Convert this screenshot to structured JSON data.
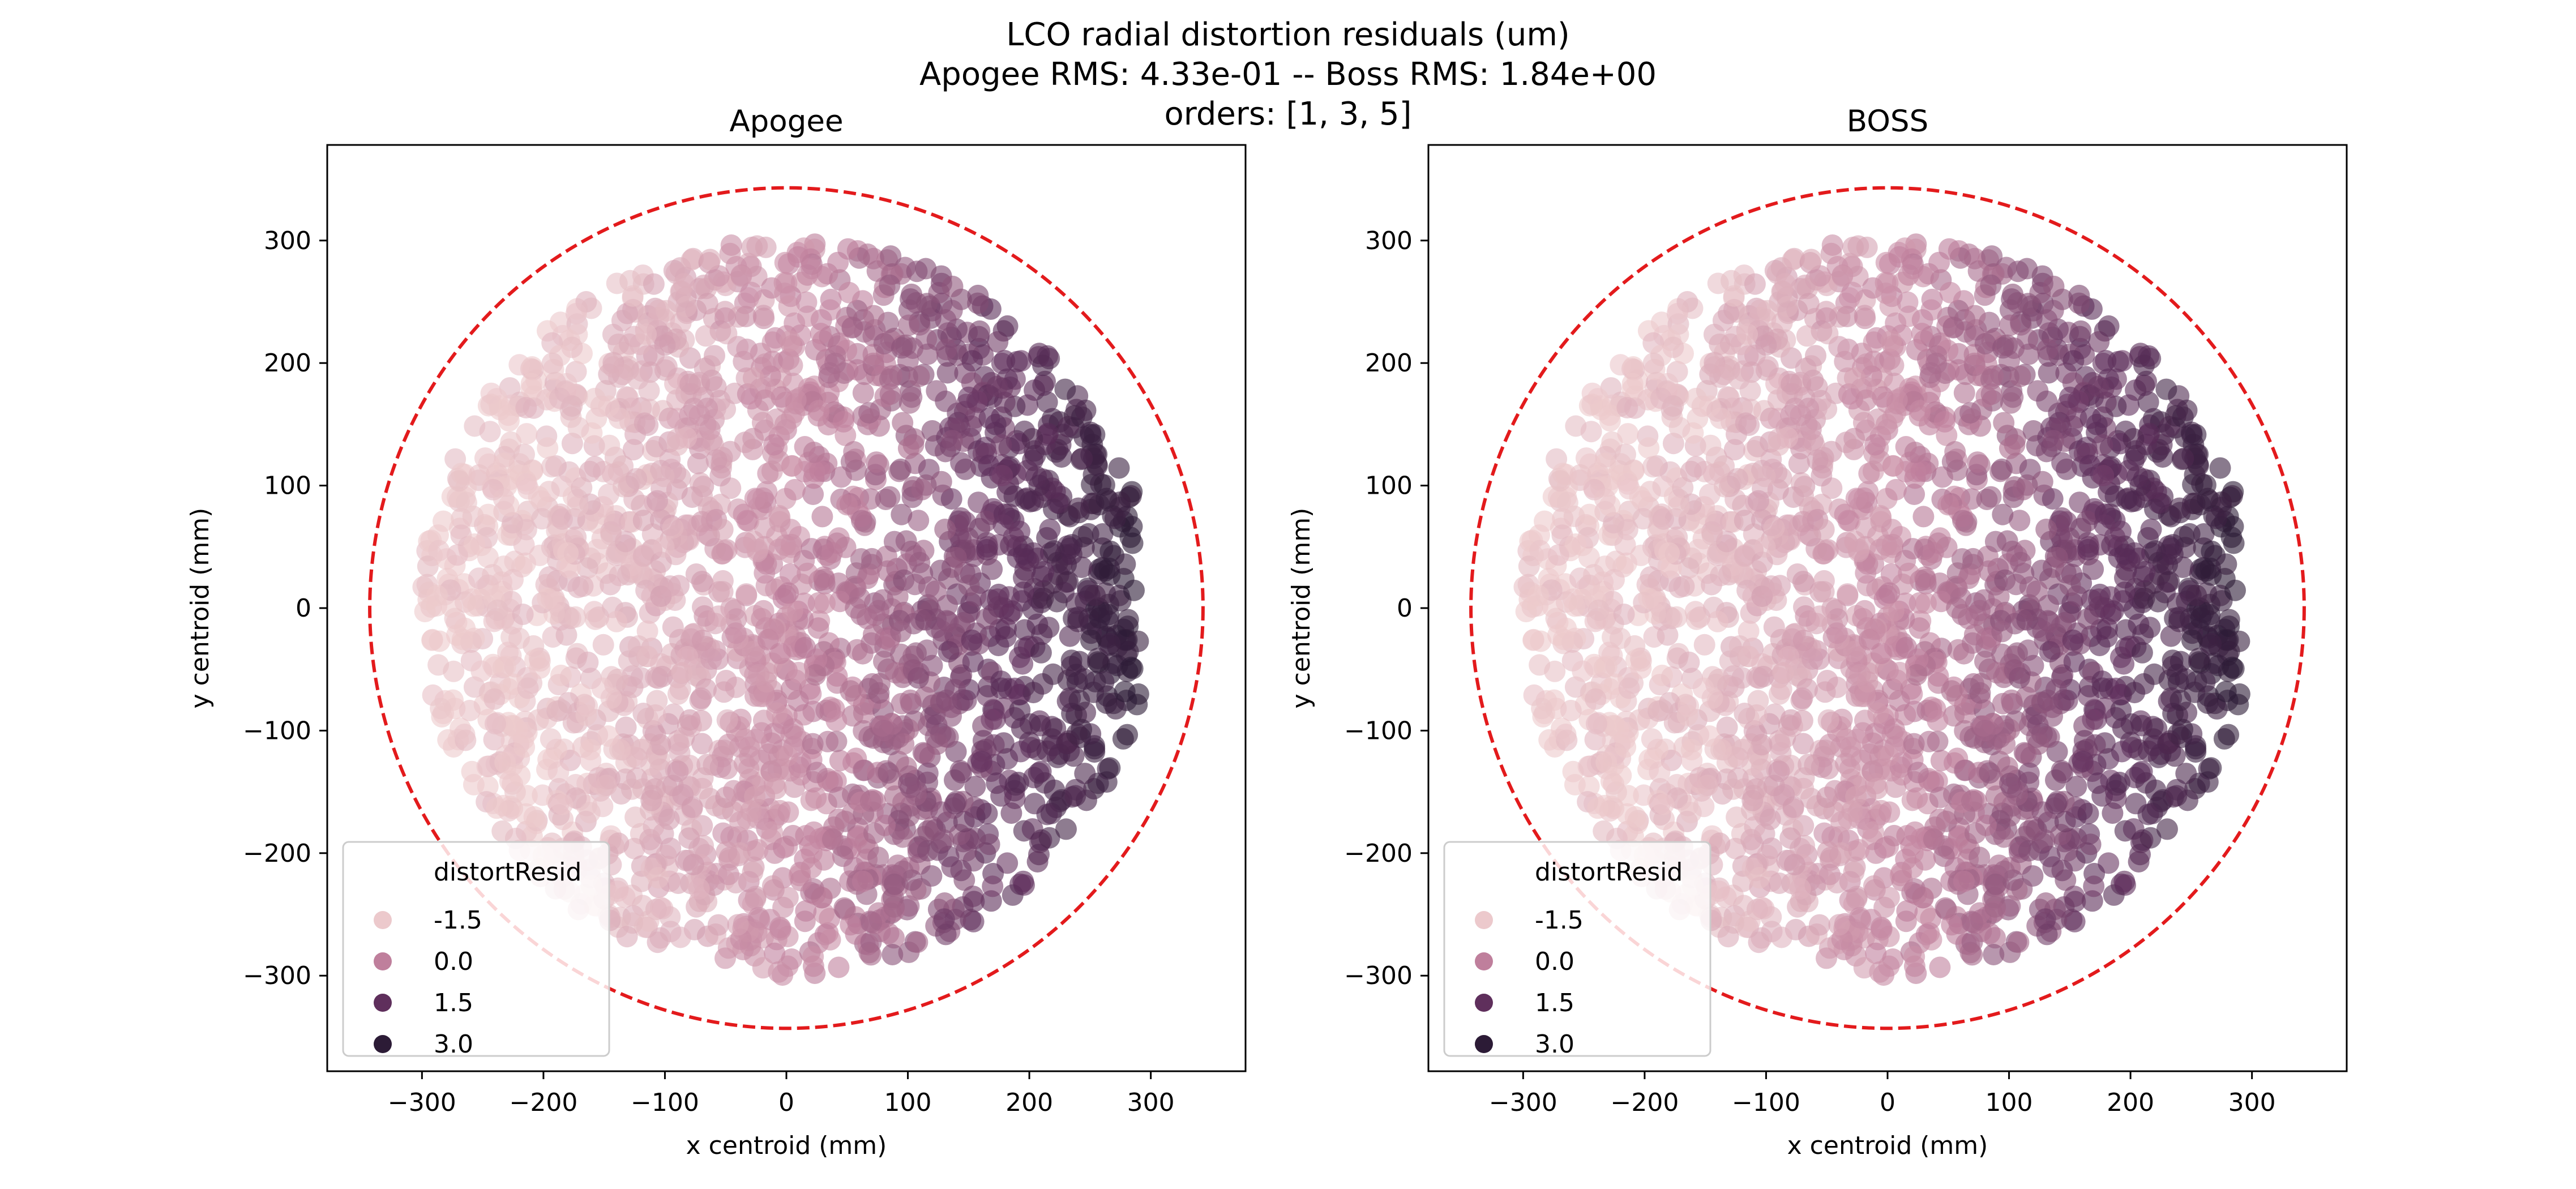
{
  "figure": {
    "title_lines": [
      "LCO radial distortion residuals (um)",
      "Apogee RMS: 4.33e-01 -- Boss RMS: 1.84e+00",
      "orders: [1, 3, 5]"
    ]
  },
  "chart_data": [
    {
      "type": "scatter",
      "title": "Apogee",
      "xlabel": "x centroid (mm)",
      "ylabel": "y centroid (mm)",
      "xlim": [
        -378,
        378
      ],
      "ylim": [
        -378,
        378
      ],
      "xticks": [
        -300,
        -200,
        -100,
        0,
        100,
        200,
        300
      ],
      "yticks": [
        -300,
        -200,
        -100,
        0,
        100,
        200,
        300
      ],
      "xtick_labels": [
        "−300",
        "−200",
        "−100",
        "0",
        "100",
        "200",
        "300"
      ],
      "ytick_labels": [
        "−300",
        "−200",
        "−100",
        "0",
        "100",
        "200",
        "300"
      ],
      "grid": false,
      "hue_variable": "distortResid",
      "color_range": [
        -1.5,
        3.0
      ],
      "field_radius": 300,
      "field_xmax": 290,
      "boundary_circle": {
        "center": [
          0,
          0
        ],
        "radius": 343,
        "color": "#e31a1c",
        "style": "dashed"
      },
      "residual_model": {
        "gradient_axis": "x",
        "value_at_xmin": -1.5,
        "value_at_xmax": 3.0
      },
      "legend": {
        "title": "distortResid",
        "placement": "lower-left",
        "entries": [
          {
            "label": "-1.5",
            "value": -1.5,
            "color": "#ecc9cc"
          },
          {
            "label": "0.0",
            "value": 0.0,
            "color": "#bf7f9c"
          },
          {
            "label": "1.5",
            "value": 1.5,
            "color": "#5f2f5c"
          },
          {
            "label": "3.0",
            "value": 3.0,
            "color": "#2c1b36"
          }
        ]
      }
    },
    {
      "type": "scatter",
      "title": "BOSS",
      "xlabel": "x centroid (mm)",
      "ylabel": "y centroid (mm)",
      "xlim": [
        -378,
        378
      ],
      "ylim": [
        -378,
        378
      ],
      "xticks": [
        -300,
        -200,
        -100,
        0,
        100,
        200,
        300
      ],
      "yticks": [
        -300,
        -200,
        -100,
        0,
        100,
        200,
        300
      ],
      "xtick_labels": [
        "−300",
        "−200",
        "−100",
        "0",
        "100",
        "200",
        "300"
      ],
      "ytick_labels": [
        "−300",
        "−200",
        "−100",
        "0",
        "100",
        "200",
        "300"
      ],
      "grid": false,
      "hue_variable": "distortResid",
      "color_range": [
        -1.5,
        3.0
      ],
      "field_radius": 300,
      "field_xmax": 290,
      "boundary_circle": {
        "center": [
          0,
          0
        ],
        "radius": 343,
        "color": "#e31a1c",
        "style": "dashed"
      },
      "residual_model": {
        "gradient_axis": "x",
        "value_at_xmin": -1.5,
        "value_at_xmax": 3.0
      },
      "legend": {
        "title": "distortResid",
        "placement": "lower-left",
        "entries": [
          {
            "label": "-1.5",
            "value": -1.5,
            "color": "#ecc9cc"
          },
          {
            "label": "0.0",
            "value": 0.0,
            "color": "#bf7f9c"
          },
          {
            "label": "1.5",
            "value": 1.5,
            "color": "#5f2f5c"
          },
          {
            "label": "3.0",
            "value": 3.0,
            "color": "#2c1b36"
          }
        ]
      }
    }
  ]
}
